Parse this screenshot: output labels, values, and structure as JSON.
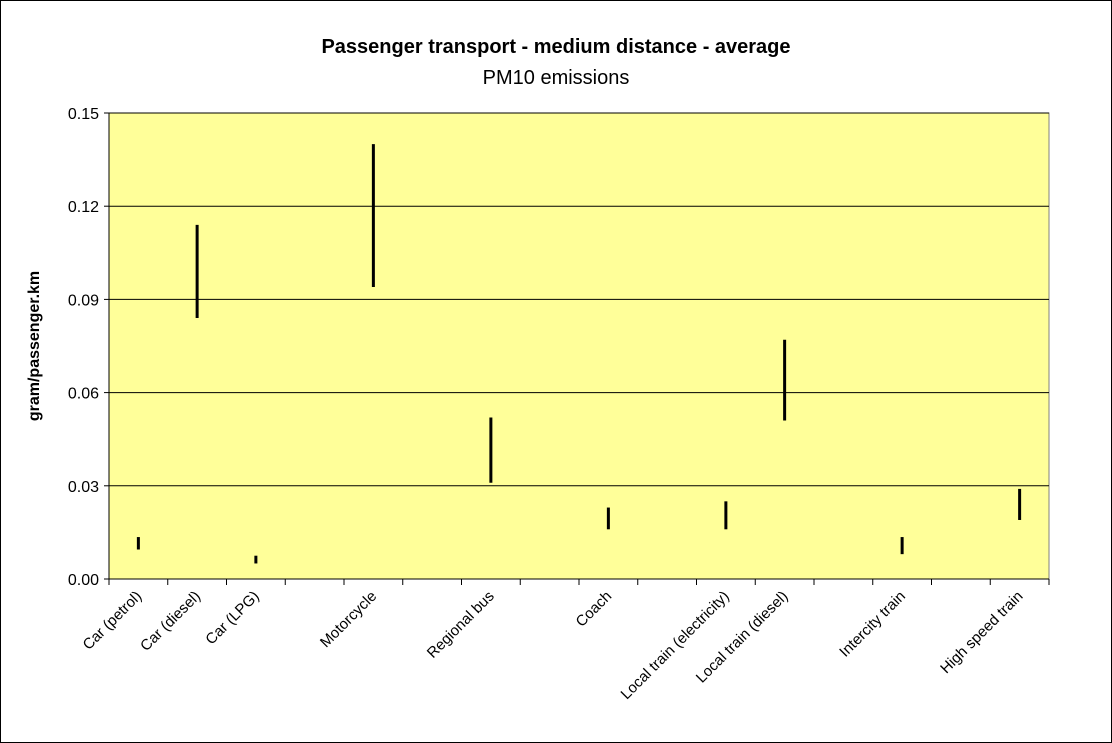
{
  "chart_data": {
    "type": "range",
    "title": "Passenger transport - medium distance - average",
    "subtitle": "PM10 emissions",
    "xlabel": "",
    "ylabel": "gram/passenger.km",
    "ylim": [
      0,
      0.15
    ],
    "yticks": [
      "0.00",
      "0.03",
      "0.06",
      "0.09",
      "0.12",
      "0.15"
    ],
    "grid": true,
    "colors": {
      "plot_bg": "#FFFF99",
      "range": "#000000",
      "grid": "#000000"
    },
    "categories": [
      "Car (petrol)",
      "Car (diesel)",
      "Car (LPG)",
      "Motorcycle",
      "Regional bus",
      "Coach",
      "Local train (electricity)",
      "Local train (diesel)",
      "Intercity train",
      "High speed train"
    ],
    "x_positions": [
      0.5,
      1.5,
      2.5,
      4.5,
      6.5,
      8.5,
      10.5,
      11.5,
      13.5,
      15.5
    ],
    "x_slots": 16,
    "low": [
      0.0095,
      0.084,
      0.005,
      0.094,
      0.031,
      0.016,
      0.016,
      0.051,
      0.008,
      0.019
    ],
    "high": [
      0.0135,
      0.114,
      0.0075,
      0.14,
      0.052,
      0.023,
      0.025,
      0.077,
      0.0135,
      0.029
    ]
  }
}
